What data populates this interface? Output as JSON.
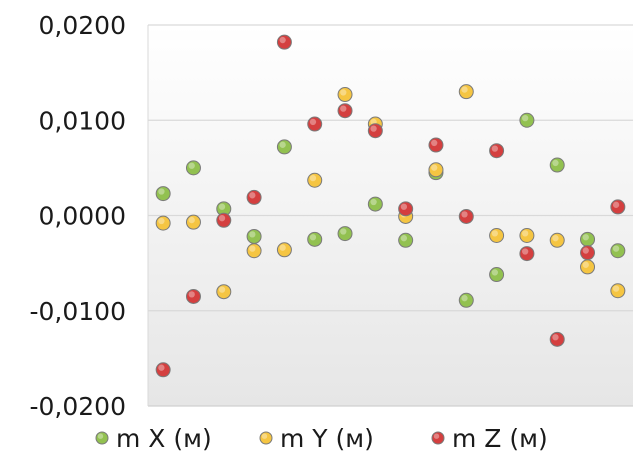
{
  "chart_data": {
    "type": "scatter",
    "title": "",
    "xlabel": "",
    "ylabel": "",
    "x": [
      1,
      2,
      3,
      4,
      5,
      6,
      7,
      8,
      9,
      10,
      11,
      12,
      13,
      14,
      15,
      16
    ],
    "xlim": [
      0.5,
      16.5
    ],
    "ylim": [
      -0.02,
      0.02
    ],
    "y_ticks": [
      0.02,
      0.01,
      0.0,
      -0.01,
      -0.02
    ],
    "y_tick_labels": [
      "0,0200",
      "0,0100",
      "0,0000",
      "-0,0100",
      "-0,0200"
    ],
    "grid": true,
    "legend_position": "bottom",
    "series": [
      {
        "name": "m X (м)",
        "color": "#92c150",
        "values": [
          0.0023,
          0.005,
          0.0007,
          -0.0022,
          0.0072,
          -0.0025,
          -0.0019,
          0.0012,
          -0.0026,
          0.0045,
          -0.0089,
          -0.0062,
          0.01,
          0.0053,
          -0.0025,
          -0.0037
        ]
      },
      {
        "name": "m Y (м)",
        "color": "#f5c542",
        "values": [
          -0.0008,
          -0.0007,
          -0.008,
          -0.0037,
          -0.0036,
          0.0037,
          0.0127,
          0.0096,
          -0.0001,
          0.0048,
          0.013,
          -0.0021,
          -0.0021,
          -0.0026,
          -0.0054,
          -0.0079
        ]
      },
      {
        "name": "m Z (м)",
        "color": "#d43f3f",
        "values": [
          -0.0162,
          -0.0085,
          -0.0005,
          0.0019,
          0.0182,
          0.0096,
          0.011,
          0.0089,
          0.0007,
          0.0074,
          -0.0001,
          0.0068,
          -0.004,
          -0.013,
          -0.0039,
          0.0009
        ]
      }
    ]
  }
}
